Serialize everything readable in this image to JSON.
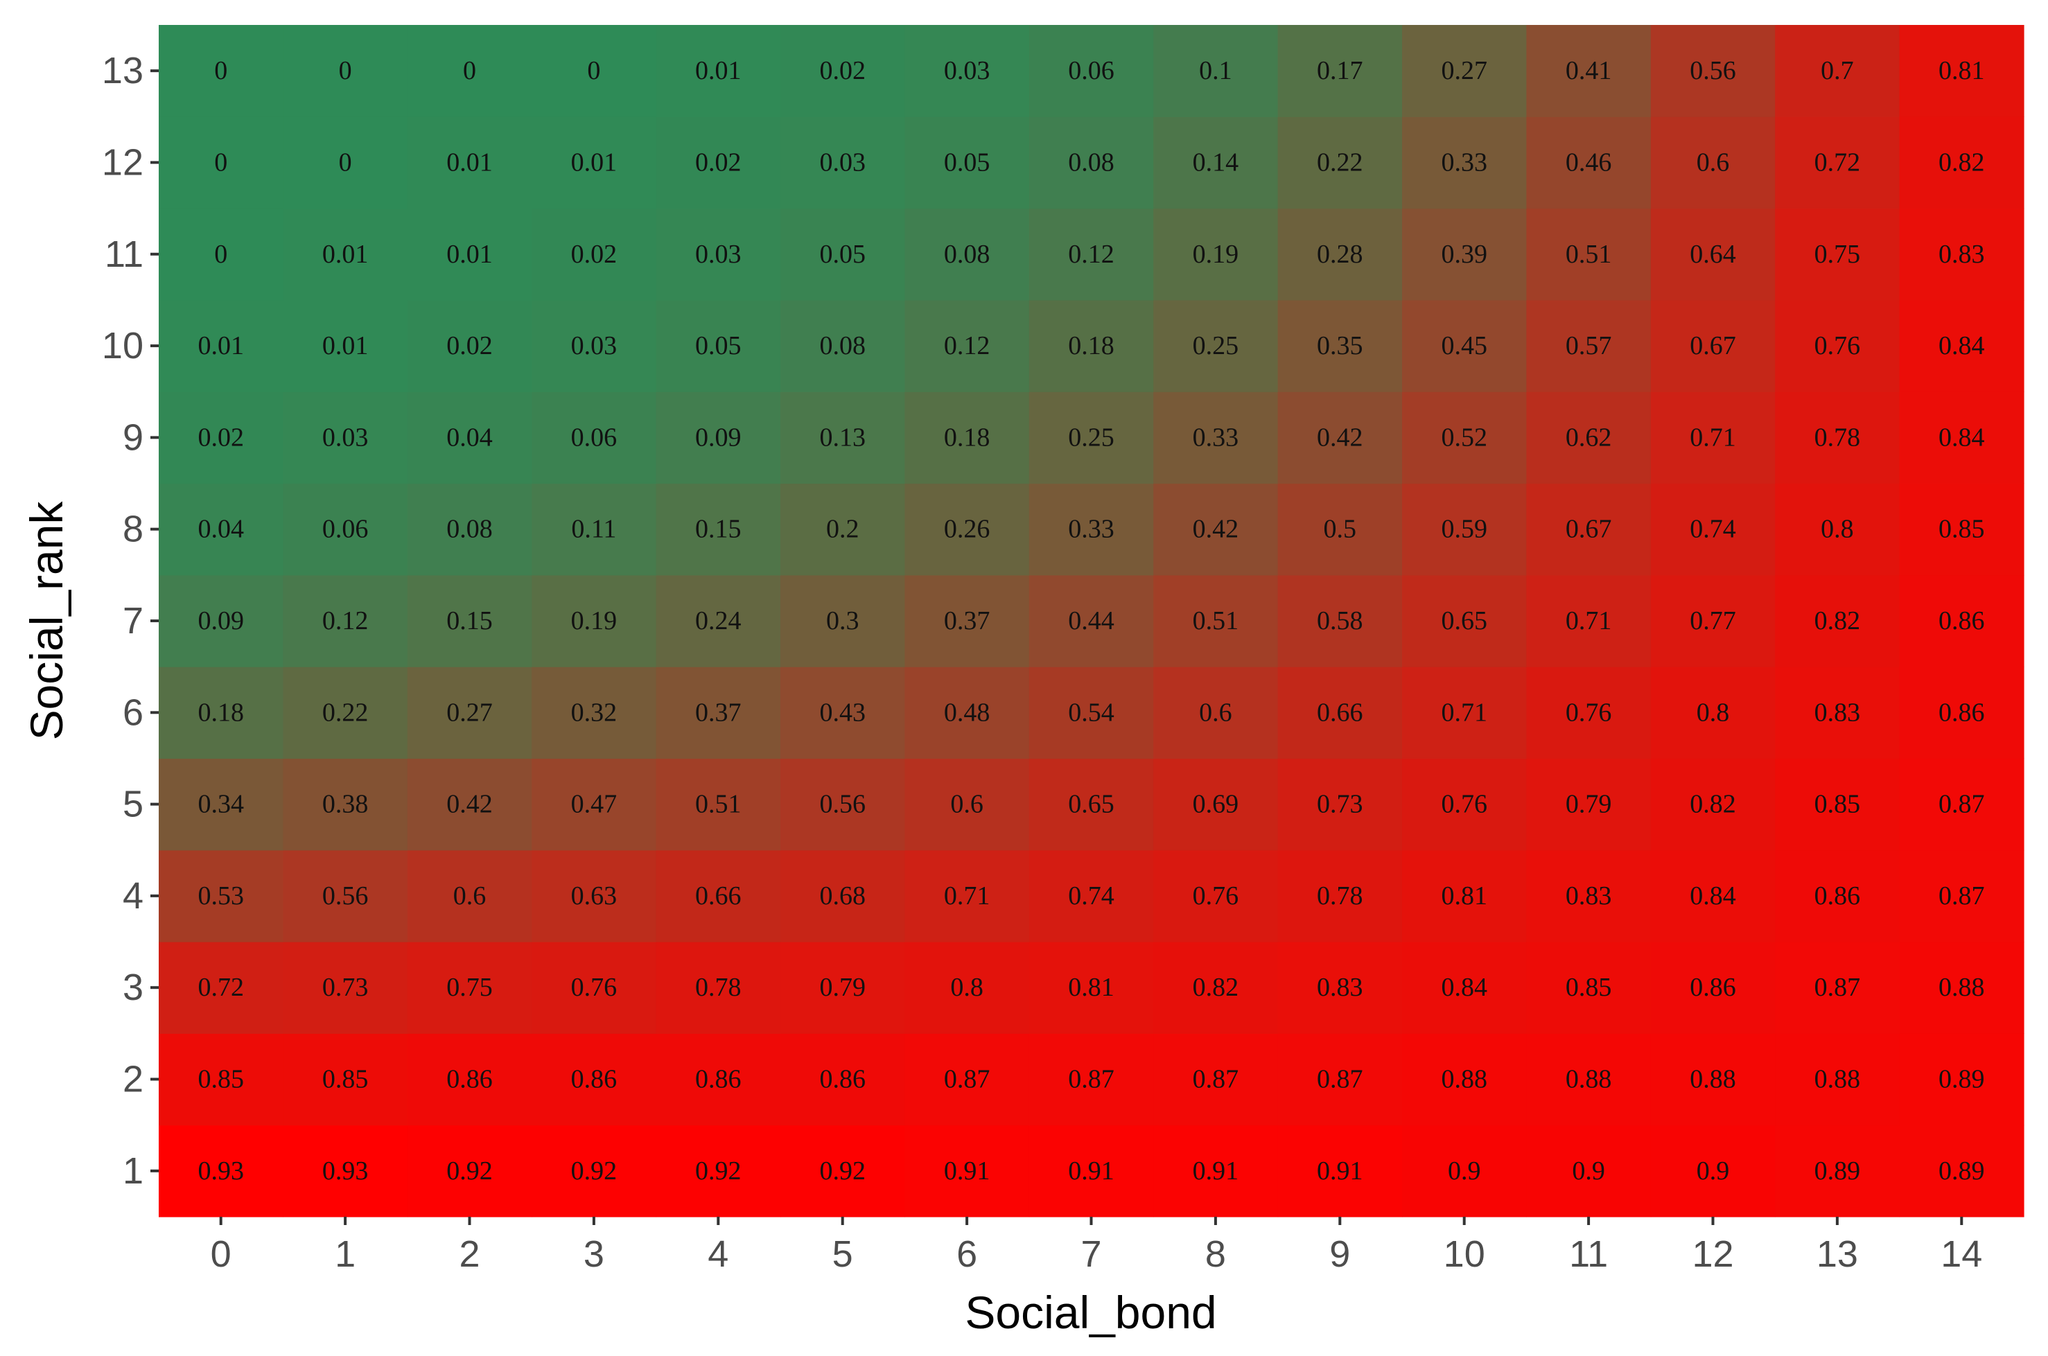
{
  "chart_data": {
    "type": "heatmap",
    "title": "",
    "xlabel": "Social_bond",
    "ylabel": "Social_rank",
    "x_categories": [
      "0",
      "1",
      "2",
      "3",
      "4",
      "5",
      "6",
      "7",
      "8",
      "9",
      "10",
      "11",
      "12",
      "13",
      "14"
    ],
    "y_categories": [
      "1",
      "2",
      "3",
      "4",
      "5",
      "6",
      "7",
      "8",
      "9",
      "10",
      "11",
      "12",
      "13"
    ],
    "values": [
      [
        "0.93",
        "0.93",
        "0.92",
        "0.92",
        "0.92",
        "0.92",
        "0.91",
        "0.91",
        "0.91",
        "0.91",
        "0.9",
        "0.9",
        "0.9",
        "0.89",
        "0.89"
      ],
      [
        "0.85",
        "0.85",
        "0.86",
        "0.86",
        "0.86",
        "0.86",
        "0.87",
        "0.87",
        "0.87",
        "0.87",
        "0.88",
        "0.88",
        "0.88",
        "0.88",
        "0.89"
      ],
      [
        "0.72",
        "0.73",
        "0.75",
        "0.76",
        "0.78",
        "0.79",
        "0.8",
        "0.81",
        "0.82",
        "0.83",
        "0.84",
        "0.85",
        "0.86",
        "0.87",
        "0.88"
      ],
      [
        "0.53",
        "0.56",
        "0.6",
        "0.63",
        "0.66",
        "0.68",
        "0.71",
        "0.74",
        "0.76",
        "0.78",
        "0.81",
        "0.83",
        "0.84",
        "0.86",
        "0.87"
      ],
      [
        "0.34",
        "0.38",
        "0.42",
        "0.47",
        "0.51",
        "0.56",
        "0.6",
        "0.65",
        "0.69",
        "0.73",
        "0.76",
        "0.79",
        "0.82",
        "0.85",
        "0.87"
      ],
      [
        "0.18",
        "0.22",
        "0.27",
        "0.32",
        "0.37",
        "0.43",
        "0.48",
        "0.54",
        "0.6",
        "0.66",
        "0.71",
        "0.76",
        "0.8",
        "0.83",
        "0.86"
      ],
      [
        "0.09",
        "0.12",
        "0.15",
        "0.19",
        "0.24",
        "0.3",
        "0.37",
        "0.44",
        "0.51",
        "0.58",
        "0.65",
        "0.71",
        "0.77",
        "0.82",
        "0.86"
      ],
      [
        "0.04",
        "0.06",
        "0.08",
        "0.11",
        "0.15",
        "0.2",
        "0.26",
        "0.33",
        "0.42",
        "0.5",
        "0.59",
        "0.67",
        "0.74",
        "0.8",
        "0.85"
      ],
      [
        "0.02",
        "0.03",
        "0.04",
        "0.06",
        "0.09",
        "0.13",
        "0.18",
        "0.25",
        "0.33",
        "0.42",
        "0.52",
        "0.62",
        "0.71",
        "0.78",
        "0.84"
      ],
      [
        "0.01",
        "0.01",
        "0.02",
        "0.03",
        "0.05",
        "0.08",
        "0.12",
        "0.18",
        "0.25",
        "0.35",
        "0.45",
        "0.57",
        "0.67",
        "0.76",
        "0.84"
      ],
      [
        "0",
        "0.01",
        "0.01",
        "0.02",
        "0.03",
        "0.05",
        "0.08",
        "0.12",
        "0.19",
        "0.28",
        "0.39",
        "0.51",
        "0.64",
        "0.75",
        "0.83"
      ],
      [
        "0",
        "0",
        "0.01",
        "0.01",
        "0.02",
        "0.03",
        "0.05",
        "0.08",
        "0.14",
        "0.22",
        "0.33",
        "0.46",
        "0.6",
        "0.72",
        "0.82"
      ],
      [
        "0",
        "0",
        "0",
        "0",
        "0.01",
        "0.02",
        "0.03",
        "0.06",
        "0.1",
        "0.17",
        "0.27",
        "0.41",
        "0.56",
        "0.7",
        "0.81"
      ]
    ],
    "color_scale": {
      "low": "#2e8b57",
      "high": "#ff0000",
      "low_value": 0,
      "high_value": 0.93
    },
    "grid": false,
    "legend": "none"
  }
}
